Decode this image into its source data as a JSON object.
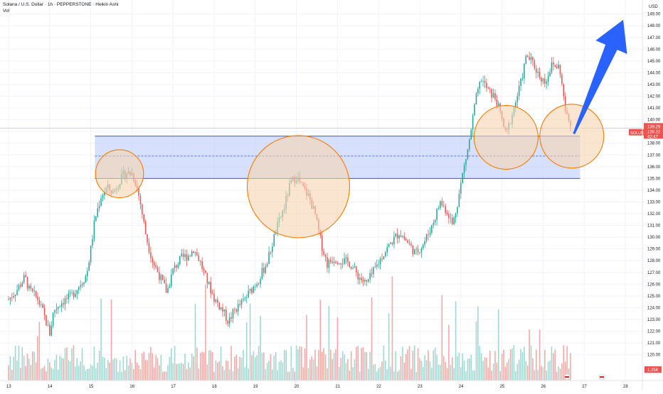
{
  "header": {
    "title": "Solana / U.S. Dollar · 1h · PEPPERSTONE · Heikin Ashi",
    "volume_label": "Vol"
  },
  "price_scale": {
    "currency": "USD",
    "ticks": [
      "120.00",
      "121.00",
      "122.00",
      "123.00",
      "124.00",
      "125.00",
      "126.00",
      "127.00",
      "128.00",
      "129.00",
      "130.00",
      "131.00",
      "132.00",
      "133.00",
      "134.00",
      "135.00",
      "136.00",
      "137.00",
      "138.00",
      "139.00",
      "140.00",
      "141.00",
      "142.00",
      "143.00",
      "144.00",
      "145.00",
      "146.00",
      "147.00",
      "148.00",
      "149.00"
    ]
  },
  "time_scale": {
    "ticks": [
      "13",
      "14",
      "15",
      "16",
      "17",
      "18",
      "19",
      "20",
      "21",
      "22",
      "23",
      "24",
      "25",
      "26",
      "27",
      "28"
    ]
  },
  "symbol_badge": "SOLUSD",
  "current_price": "139.29",
  "current_price2": "139.22",
  "countdown": "42:47",
  "volume_badge": "1.25K",
  "colors": {
    "up": "#26a69a",
    "down": "#ef5350",
    "zone_fill": "#b7c9fb",
    "zone_line": "#2e59d9",
    "circle_fill": "#f7d4b0",
    "circle_stroke": "#f57c00",
    "arrow": "#2962ff"
  },
  "chart_data": {
    "type": "candlestick",
    "x_range": [
      13,
      28.2
    ],
    "y_range": [
      118.5,
      150.2
    ],
    "support_zone": {
      "top": 138.6,
      "bottom": 135.0,
      "mid": 136.9
    },
    "current_price_line": 139.29,
    "highlight_circles": [
      {
        "x": 15.7,
        "y": 135.4,
        "r": 0.75
      },
      {
        "x": 20.05,
        "y": 134.3,
        "r": 1.6
      },
      {
        "x": 25.1,
        "y": 138.5,
        "r": 1.0
      },
      {
        "x": 26.7,
        "y": 138.6,
        "r": 1.0
      }
    ],
    "arrow": {
      "from": {
        "x": 26.75,
        "y": 138.8
      },
      "to": {
        "x": 27.95,
        "y": 148.5
      }
    },
    "price_path": [
      [
        13.0,
        124.7
      ],
      [
        13.2,
        125.5
      ],
      [
        13.4,
        126.6
      ],
      [
        13.5,
        125.5
      ],
      [
        13.7,
        124.8
      ],
      [
        13.85,
        123.5
      ],
      [
        14.0,
        121.8
      ],
      [
        14.1,
        123.8
      ],
      [
        14.3,
        124.5
      ],
      [
        14.5,
        124.9
      ],
      [
        14.7,
        125.8
      ],
      [
        14.9,
        126.8
      ],
      [
        15.0,
        129.0
      ],
      [
        15.1,
        131.5
      ],
      [
        15.25,
        133.5
      ],
      [
        15.4,
        134.2
      ],
      [
        15.55,
        133.8
      ],
      [
        15.7,
        134.8
      ],
      [
        15.85,
        135.5
      ],
      [
        16.0,
        135.4
      ],
      [
        16.1,
        134.6
      ],
      [
        16.2,
        133.0
      ],
      [
        16.35,
        130.0
      ],
      [
        16.5,
        128.0
      ],
      [
        16.7,
        126.5
      ],
      [
        16.85,
        125.3
      ],
      [
        17.0,
        127.2
      ],
      [
        17.2,
        128.2
      ],
      [
        17.4,
        128.5
      ],
      [
        17.5,
        129.0
      ],
      [
        17.65,
        128.0
      ],
      [
        17.8,
        126.5
      ],
      [
        18.0,
        124.8
      ],
      [
        18.2,
        123.8
      ],
      [
        18.35,
        122.8
      ],
      [
        18.5,
        123.8
      ],
      [
        18.7,
        124.5
      ],
      [
        18.9,
        125.5
      ],
      [
        19.1,
        126.5
      ],
      [
        19.3,
        128.0
      ],
      [
        19.5,
        130.5
      ],
      [
        19.7,
        132.5
      ],
      [
        19.85,
        134.5
      ],
      [
        20.0,
        135.2
      ],
      [
        20.15,
        134.2
      ],
      [
        20.3,
        133.5
      ],
      [
        20.45,
        132.0
      ],
      [
        20.6,
        129.5
      ],
      [
        20.75,
        127.7
      ],
      [
        20.9,
        128.2
      ],
      [
        21.1,
        128.0
      ],
      [
        21.3,
        127.8
      ],
      [
        21.5,
        126.7
      ],
      [
        21.7,
        126.0
      ],
      [
        21.9,
        127.2
      ],
      [
        22.1,
        128.5
      ],
      [
        22.3,
        129.5
      ],
      [
        22.5,
        130.4
      ],
      [
        22.7,
        129.6
      ],
      [
        22.9,
        128.6
      ],
      [
        23.1,
        129.5
      ],
      [
        23.3,
        131.0
      ],
      [
        23.5,
        133.0
      ],
      [
        23.7,
        132.0
      ],
      [
        23.8,
        131.0
      ],
      [
        23.95,
        133.5
      ],
      [
        24.05,
        135.5
      ],
      [
        24.2,
        138.0
      ],
      [
        24.35,
        141.5
      ],
      [
        24.5,
        143.5
      ],
      [
        24.65,
        142.5
      ],
      [
        24.85,
        141.8
      ],
      [
        25.0,
        140.0
      ],
      [
        25.1,
        138.6
      ],
      [
        25.25,
        140.5
      ],
      [
        25.45,
        143.0
      ],
      [
        25.6,
        145.5
      ],
      [
        25.75,
        144.8
      ],
      [
        25.9,
        143.8
      ],
      [
        26.05,
        143.2
      ],
      [
        26.2,
        144.6
      ],
      [
        26.4,
        144.5
      ],
      [
        26.55,
        140.5
      ],
      [
        26.7,
        139.2
      ]
    ]
  }
}
